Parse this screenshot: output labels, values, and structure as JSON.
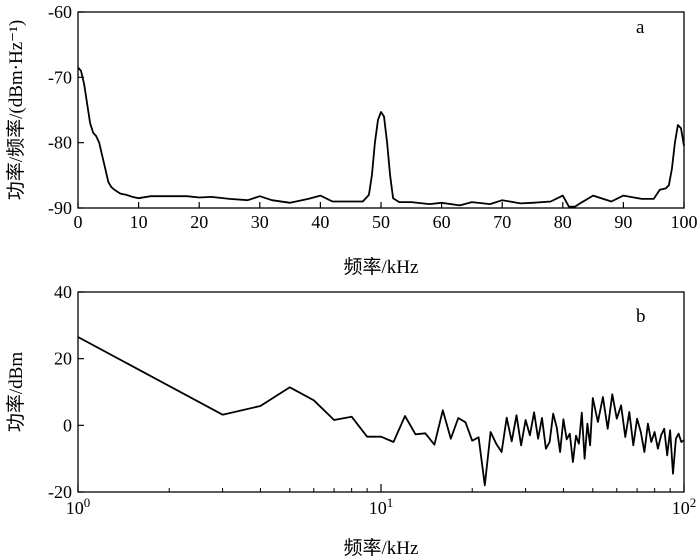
{
  "chart_data": [
    {
      "type": "line",
      "panel_label": "a",
      "xlabel": "频率/kHz",
      "ylabel": "功率/频率/(dBm·Hz⁻¹)",
      "xlim": [
        0,
        100
      ],
      "ylim": [
        -90,
        -60
      ],
      "xticks": [
        0,
        10,
        20,
        30,
        40,
        50,
        60,
        70,
        80,
        90,
        100
      ],
      "yticks": [
        -90,
        -80,
        -70,
        -60
      ],
      "x": [
        0,
        0.5,
        1,
        1.5,
        2,
        2.5,
        3,
        3.5,
        4,
        4.5,
        5,
        5.5,
        6,
        7,
        8,
        9,
        10,
        12,
        15,
        18,
        20,
        22,
        25,
        28,
        30,
        32,
        35,
        38,
        40,
        42,
        45,
        47,
        48,
        48.5,
        49,
        49.5,
        50,
        50.5,
        51,
        51.5,
        52,
        53,
        55,
        58,
        60,
        63,
        65,
        68,
        70,
        73,
        75,
        78,
        80,
        81,
        82,
        83,
        85,
        88,
        90,
        93,
        95,
        96,
        97,
        97.5,
        98,
        98.5,
        99,
        99.5,
        100
      ],
      "y": [
        -68.5,
        -69,
        -71,
        -74,
        -77,
        -78.5,
        -79,
        -80,
        -82,
        -84,
        -86,
        -86.8,
        -87.2,
        -87.8,
        -88,
        -88.3,
        -88.5,
        -88.2,
        -88.2,
        -88.2,
        -88.4,
        -88.3,
        -88.6,
        -88.8,
        -88.2,
        -88.8,
        -89.2,
        -88.6,
        -88.1,
        -89.0,
        -89.0,
        -89.0,
        -88.0,
        -85,
        -80,
        -76.5,
        -75.3,
        -76,
        -80,
        -85,
        -88.5,
        -89.1,
        -89.1,
        -89.4,
        -89.2,
        -89.6,
        -89.1,
        -89.4,
        -88.8,
        -89.3,
        -89.2,
        -89.0,
        -88.1,
        -89.8,
        -89.8,
        -89.2,
        -88.1,
        -89.0,
        -88.1,
        -88.6,
        -88.6,
        -87.2,
        -87.0,
        -86.5,
        -84,
        -80,
        -77.3,
        -77.8,
        -80.5
      ]
    },
    {
      "type": "line",
      "panel_label": "b",
      "xlabel": "频率/kHz",
      "ylabel": "功率/dBm",
      "xscale": "log",
      "xlim": [
        1,
        100
      ],
      "ylim": [
        -20,
        40
      ],
      "xticks_minor": [
        2,
        3,
        4,
        5,
        6,
        7,
        8,
        9,
        20,
        30,
        40,
        50,
        60,
        70,
        80,
        90
      ],
      "yticks": [
        -20,
        0,
        20,
        40
      ],
      "x": [
        1,
        3,
        4,
        5,
        6,
        7,
        8,
        9,
        10,
        11,
        12,
        13,
        14,
        15,
        16,
        17,
        18,
        19,
        20,
        21,
        22,
        23,
        24,
        25,
        26,
        27,
        28,
        29,
        30,
        31,
        32,
        33,
        34,
        35,
        36,
        37,
        38,
        39,
        40,
        41,
        42,
        43,
        44,
        45,
        46,
        47,
        48,
        49,
        50,
        52,
        54,
        56,
        58,
        60,
        62,
        64,
        66,
        68,
        70,
        72,
        74,
        76,
        78,
        80,
        82,
        84,
        86,
        88,
        90,
        92,
        94,
        96,
        98,
        100
      ],
      "y": [
        26.5,
        3.2,
        5.8,
        11.4,
        7.5,
        1.6,
        2.6,
        -3.4,
        -3.4,
        -5.0,
        2.8,
        -2.7,
        -2.4,
        -5.8,
        4.5,
        -4.0,
        2.2,
        0.9,
        -4.6,
        -3.6,
        -18.0,
        -2.0,
        -5.5,
        -8.0,
        2.3,
        -4.8,
        3.0,
        -6.0,
        1.6,
        -3.0,
        3.9,
        -4.0,
        2.2,
        -7.0,
        -5.0,
        3.5,
        -0.6,
        -8.0,
        1.8,
        -4.2,
        -2.5,
        -11.0,
        -3.1,
        -5.5,
        3.8,
        -10.0,
        0.5,
        -6.0,
        8.2,
        1.0,
        8.5,
        -1.0,
        9.3,
        2.0,
        6.0,
        -3.5,
        4.0,
        -6.0,
        2.0,
        -2.0,
        -8.0,
        0.5,
        -5.0,
        -2.0,
        -7.0,
        -3.0,
        -1.0,
        -9.0,
        -1.5,
        -14.5,
        -4.0,
        -2.5,
        -5.0,
        -4.5
      ]
    }
  ]
}
